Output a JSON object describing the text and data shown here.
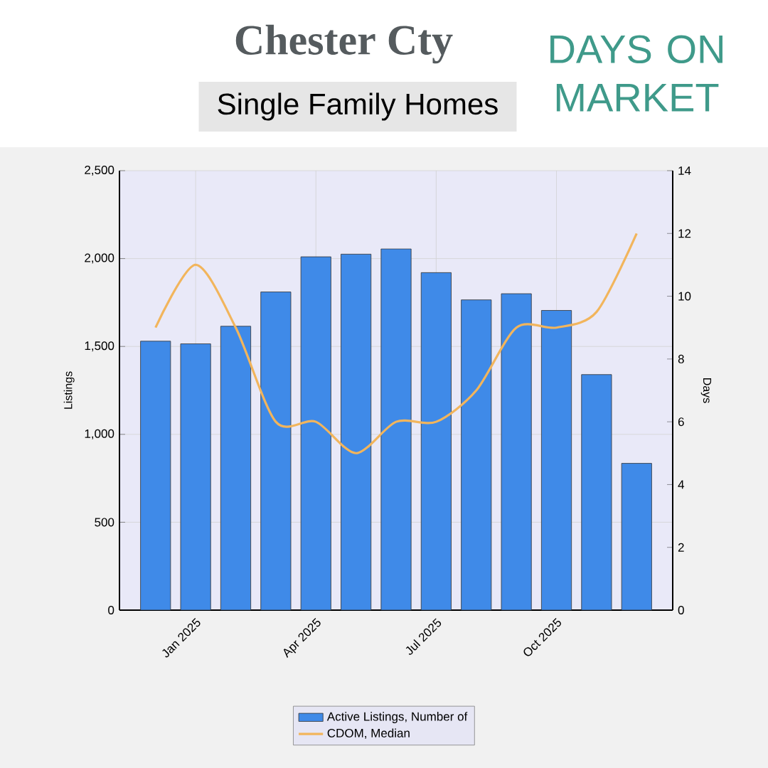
{
  "chart_data": {
    "type": "bar",
    "title": "Chester Cty",
    "subtitle": "Single Family Homes",
    "annotations": [
      "DAYS ON MARKET"
    ],
    "categories": [
      null,
      "Jan 2025",
      null,
      null,
      "Apr 2025",
      null,
      null,
      "Jul 2025",
      null,
      null,
      "Oct 2025",
      null,
      null
    ],
    "ylabel": "Listings",
    "y2label": "Days",
    "ylim": [
      0,
      2500
    ],
    "yticks": [
      {
        "value": 0,
        "label": "0"
      },
      {
        "value": 500,
        "label": "500"
      },
      {
        "value": 1000,
        "label": "1,000"
      },
      {
        "value": 1500,
        "label": "1,500"
      },
      {
        "value": 2000,
        "label": "2,000"
      },
      {
        "value": 2500,
        "label": "2,500"
      }
    ],
    "y2lim": [
      0,
      14
    ],
    "y2ticks": [
      0,
      2,
      4,
      6,
      8,
      10,
      12,
      14
    ],
    "grid": true,
    "legend": "bottom",
    "series": [
      {
        "name": "Active Listings, Number of",
        "color": "#3f8ae8",
        "values": [
          1530,
          1515,
          1615,
          1810,
          2010,
          2025,
          2055,
          1920,
          1765,
          1800,
          1705,
          1340,
          835
        ]
      },
      {
        "name": "CDOM, Median",
        "type": "line",
        "axis": "y2",
        "color": "#f2b55c",
        "values": [
          9,
          11,
          9,
          6,
          6,
          5,
          6,
          6,
          7,
          9,
          9,
          9.5,
          12
        ]
      }
    ]
  }
}
